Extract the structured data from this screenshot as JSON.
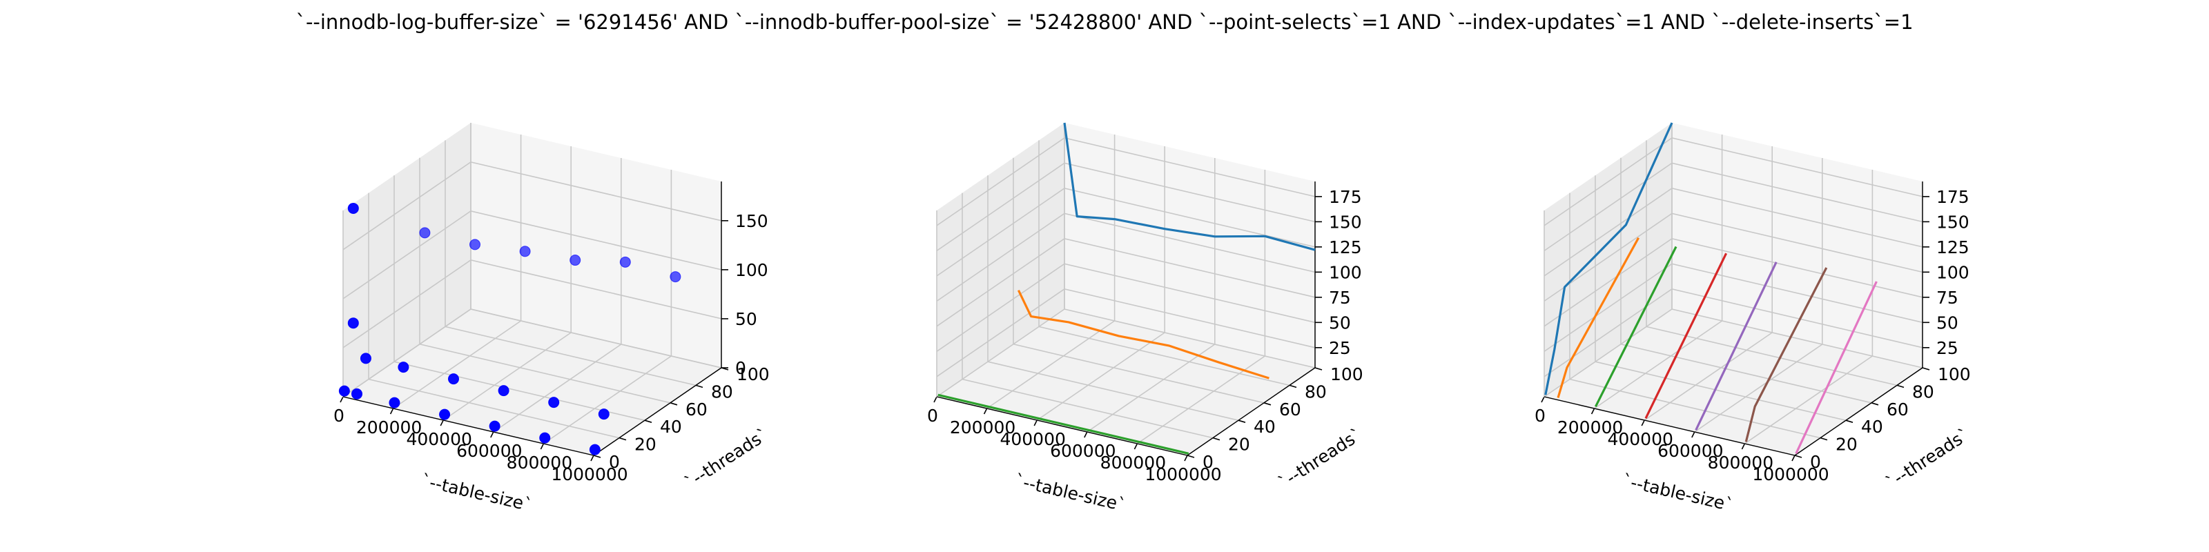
{
  "figure": {
    "title": "`--innodb-log-buffer-size` = '6291456' AND `--innodb-buffer-pool-size` = '52428800'  AND `--point-selects`=1 AND `--index-updates`=1 AND `--delete-inserts`=1"
  },
  "chart_data": [
    {
      "type": "scatter",
      "title": "",
      "xlabel": "`--table-size`",
      "ylabel": "`--threads`",
      "zlabel": "",
      "xlim": [
        0,
        1000000
      ],
      "ylim": [
        0,
        100
      ],
      "zlim": [
        0,
        190
      ],
      "xticks": [
        "0",
        "200000",
        "400000",
        "600000",
        "800000",
        "1000000"
      ],
      "yticks": [
        "0",
        "20",
        "40",
        "60",
        "80",
        "100"
      ],
      "zticks": [
        "0",
        "50",
        "100",
        "150"
      ],
      "grid": true,
      "color": "#0000ff",
      "points": [
        {
          "x": 0,
          "y": 1,
          "z": 5
        },
        {
          "x": 50000,
          "y": 1,
          "z": 5
        },
        {
          "x": 200000,
          "y": 1,
          "z": 5
        },
        {
          "x": 400000,
          "y": 1,
          "z": 5
        },
        {
          "x": 600000,
          "y": 1,
          "z": 5
        },
        {
          "x": 800000,
          "y": 1,
          "z": 5
        },
        {
          "x": 1000000,
          "y": 1,
          "z": 5
        },
        {
          "x": 0,
          "y": 8,
          "z": 185
        },
        {
          "x": 0,
          "y": 8,
          "z": 68
        },
        {
          "x": 50000,
          "y": 8,
          "z": 35
        },
        {
          "x": 200000,
          "y": 8,
          "z": 35
        },
        {
          "x": 400000,
          "y": 8,
          "z": 35
        },
        {
          "x": 600000,
          "y": 8,
          "z": 35
        },
        {
          "x": 800000,
          "y": 8,
          "z": 35
        },
        {
          "x": 1000000,
          "y": 8,
          "z": 35
        },
        {
          "x": 0,
          "y": 64,
          "z": 110
        },
        {
          "x": 200000,
          "y": 64,
          "z": 110
        },
        {
          "x": 400000,
          "y": 64,
          "z": 115
        },
        {
          "x": 600000,
          "y": 64,
          "z": 118
        },
        {
          "x": 800000,
          "y": 64,
          "z": 128
        },
        {
          "x": 1000000,
          "y": 64,
          "z": 125
        }
      ]
    },
    {
      "type": "line",
      "title": "",
      "xlabel": "`--table-size`",
      "ylabel": "`--threads`",
      "zlabel": "",
      "xlim": [
        0,
        1000000
      ],
      "ylim": [
        0,
        100
      ],
      "zlim": [
        5,
        190
      ],
      "xticks": [
        "0",
        "200000",
        "400000",
        "600000",
        "800000",
        "1000000"
      ],
      "yticks": [
        "0",
        "20",
        "40",
        "60",
        "80",
        "100"
      ],
      "zticks": [
        "25",
        "50",
        "75",
        "100",
        "125",
        "150",
        "175"
      ],
      "grid": true,
      "series": [
        {
          "color": "#1f77b4",
          "y": 100,
          "points": [
            {
              "x": 0,
              "z": 190
            },
            {
              "x": 50000,
              "z": 100
            },
            {
              "x": 200000,
              "z": 106
            },
            {
              "x": 400000,
              "z": 108
            },
            {
              "x": 600000,
              "z": 112
            },
            {
              "x": 800000,
              "z": 124
            },
            {
              "x": 1000000,
              "z": 122
            }
          ]
        },
        {
          "color": "#ff7f0e",
          "y": 64,
          "points": [
            {
              "x": 0,
              "z": 55
            },
            {
              "x": 50000,
              "z": 32
            },
            {
              "x": 200000,
              "z": 35
            },
            {
              "x": 400000,
              "z": 33
            },
            {
              "x": 600000,
              "z": 35
            },
            {
              "x": 800000,
              "z": 30
            },
            {
              "x": 1000000,
              "z": 26
            }
          ]
        },
        {
          "color": "#2ca02c",
          "y": 1,
          "points": [
            {
              "x": 0,
              "z": 6
            },
            {
              "x": 200000,
              "z": 6
            },
            {
              "x": 400000,
              "z": 6
            },
            {
              "x": 600000,
              "z": 6
            },
            {
              "x": 800000,
              "z": 6
            },
            {
              "x": 1000000,
              "z": 6
            }
          ]
        }
      ]
    },
    {
      "type": "line",
      "title": "",
      "xlabel": "`--table-size`",
      "ylabel": "`--threads`",
      "zlabel": "",
      "xlim": [
        0,
        1000000
      ],
      "ylim": [
        0,
        100
      ],
      "zlim": [
        5,
        190
      ],
      "xticks": [
        "0",
        "200000",
        "400000",
        "600000",
        "800000",
        "1000000"
      ],
      "yticks": [
        "0",
        "20",
        "40",
        "60",
        "80",
        "100"
      ],
      "zticks": [
        "25",
        "50",
        "75",
        "100",
        "125",
        "150",
        "175"
      ],
      "grid": true,
      "series": [
        {
          "color": "#1f77b4",
          "x": 0,
          "points": [
            {
              "y": 1,
              "z": 6
            },
            {
              "y": 8,
              "z": 45
            },
            {
              "y": 16,
              "z": 100
            },
            {
              "y": 64,
              "z": 120
            },
            {
              "y": 100,
              "z": 190
            }
          ]
        },
        {
          "color": "#ff7f0e",
          "x": 50000,
          "points": [
            {
              "y": 1,
              "z": 6
            },
            {
              "y": 8,
              "z": 30
            },
            {
              "y": 64,
              "z": 110
            }
          ]
        },
        {
          "color": "#2ca02c",
          "x": 200000,
          "points": [
            {
              "y": 1,
              "z": 6
            },
            {
              "y": 64,
              "z": 110
            }
          ]
        },
        {
          "color": "#d62728",
          "x": 400000,
          "points": [
            {
              "y": 1,
              "z": 6
            },
            {
              "y": 64,
              "z": 115
            }
          ]
        },
        {
          "color": "#9467bd",
          "x": 600000,
          "points": [
            {
              "y": 1,
              "z": 6
            },
            {
              "y": 64,
              "z": 118
            }
          ]
        },
        {
          "color": "#8c564b",
          "x": 800000,
          "points": [
            {
              "y": 1,
              "z": 6
            },
            {
              "y": 8,
              "z": 35
            },
            {
              "y": 64,
              "z": 124
            }
          ]
        },
        {
          "color": "#e377c2",
          "x": 1000000,
          "points": [
            {
              "y": 1,
              "z": 6
            },
            {
              "y": 64,
              "z": 122
            }
          ]
        }
      ]
    }
  ]
}
